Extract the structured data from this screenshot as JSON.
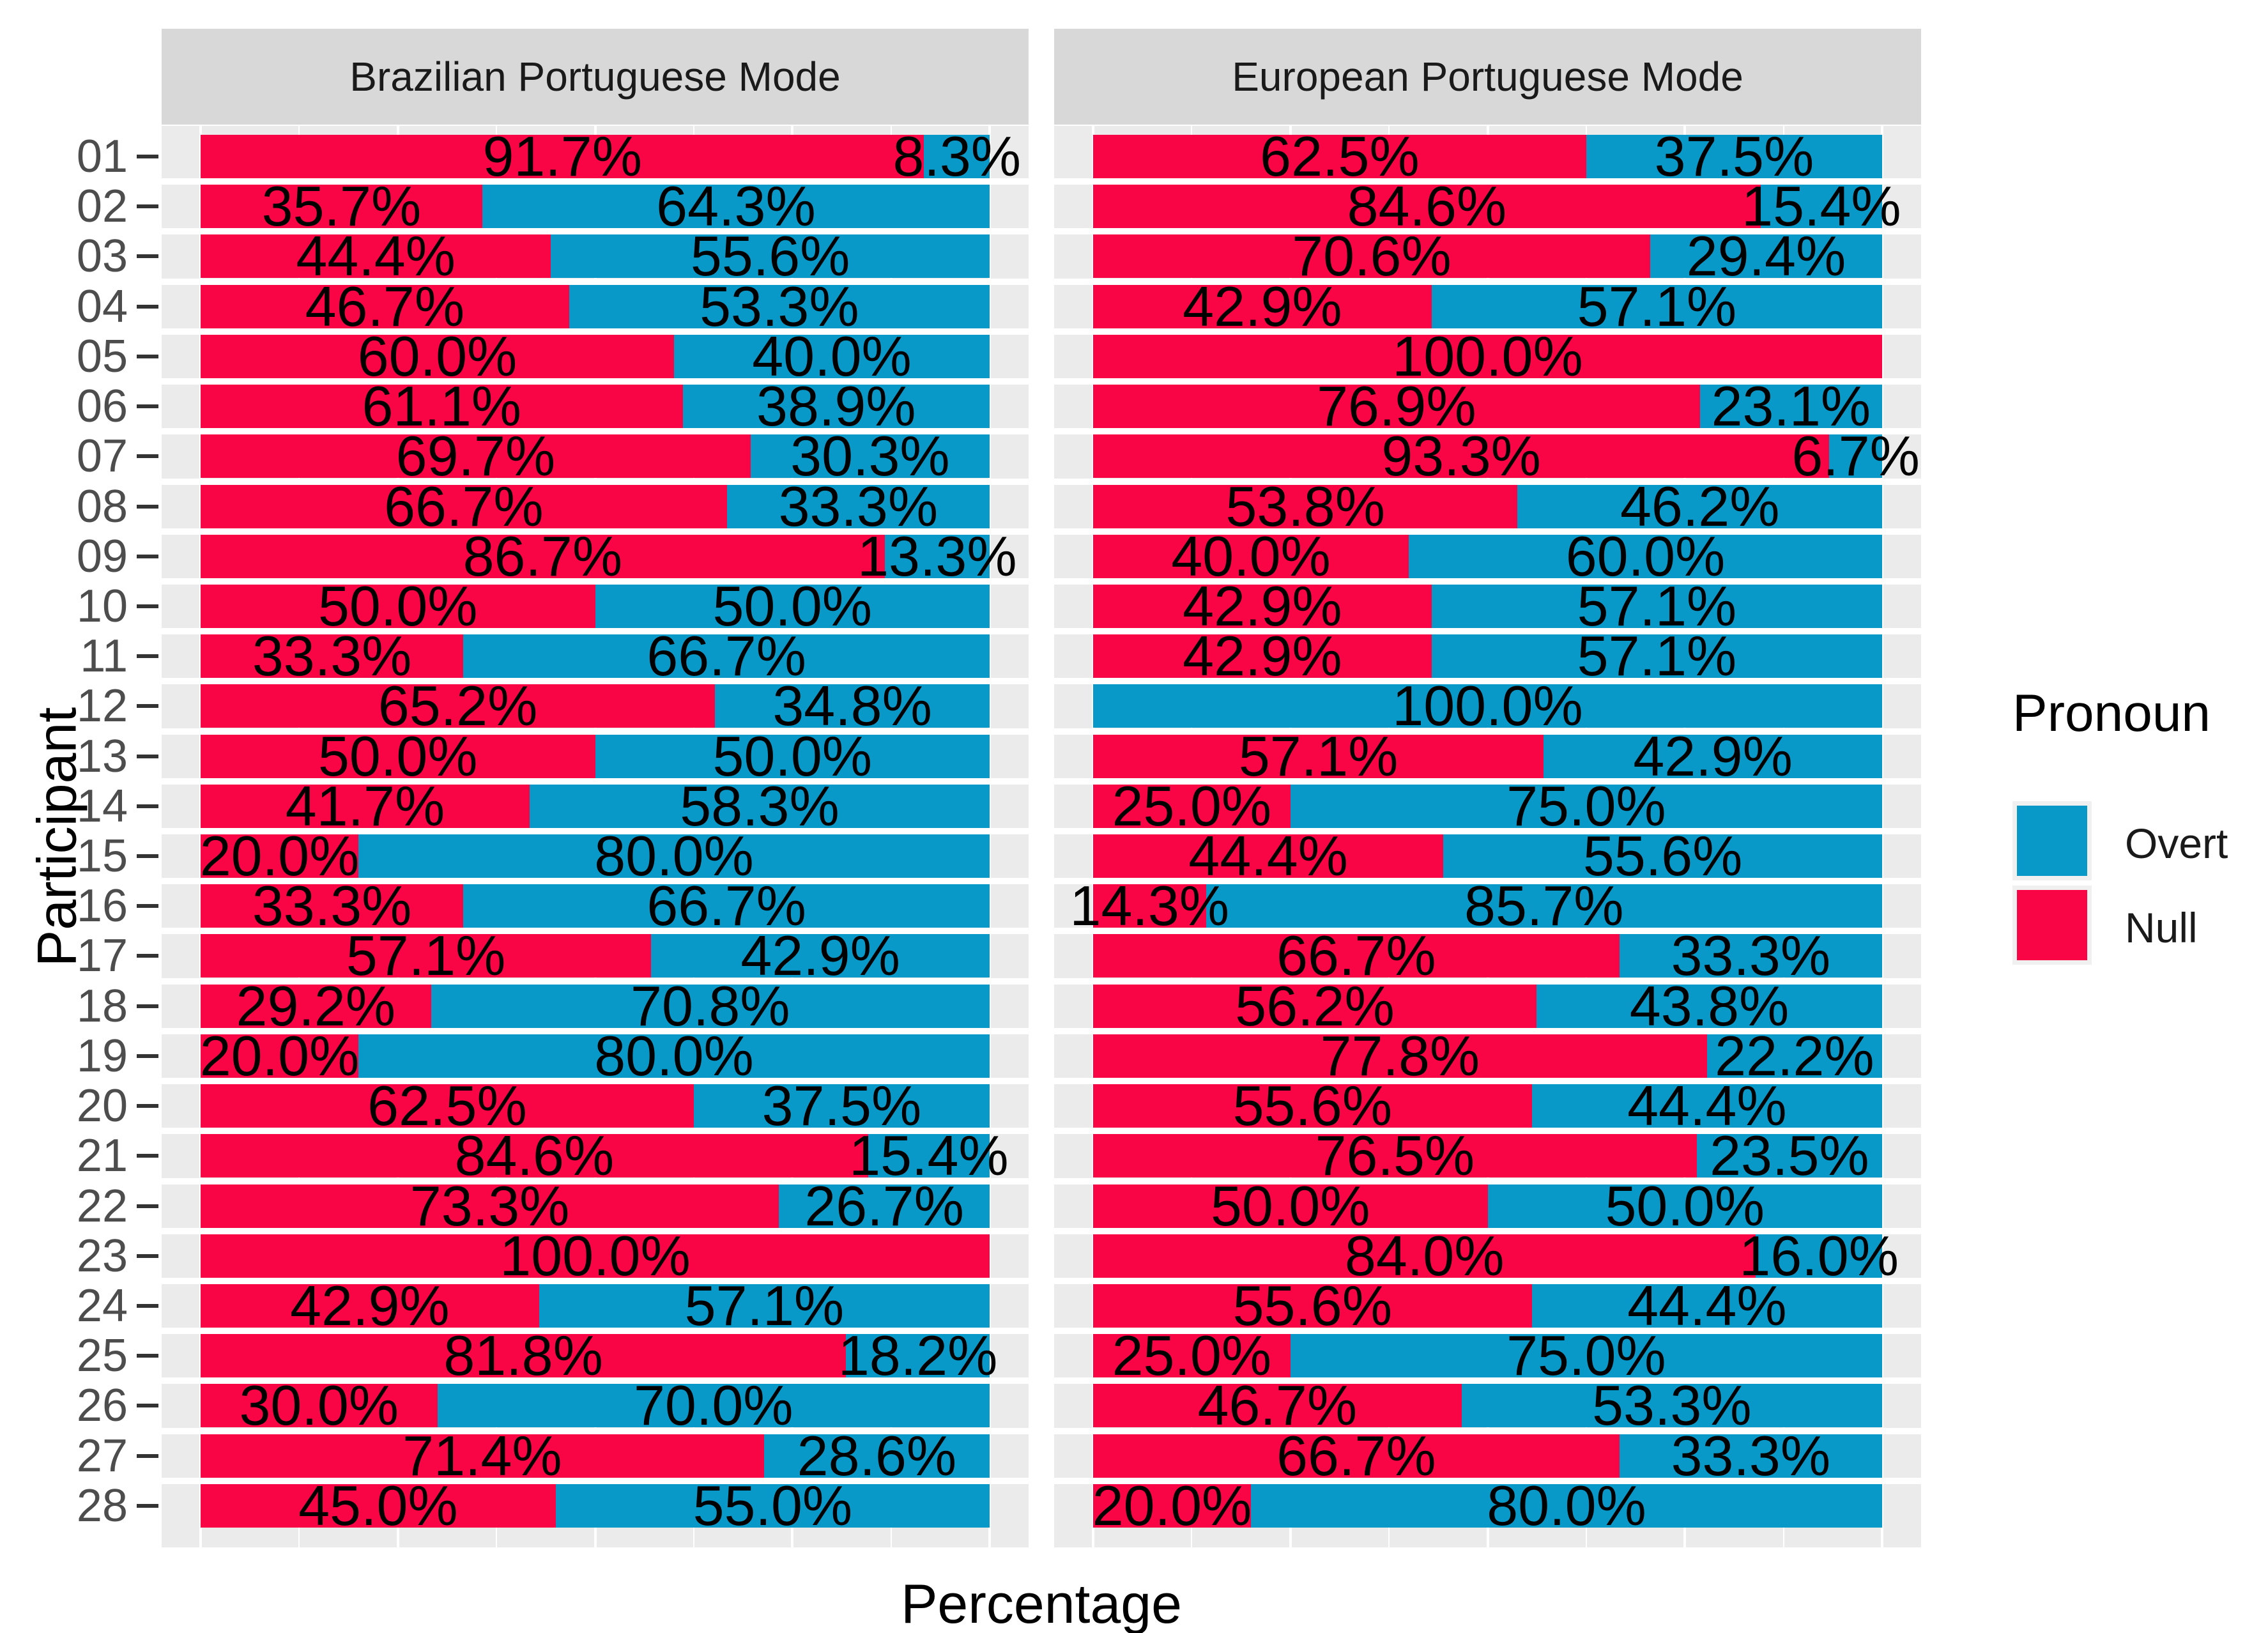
{
  "chart_data": {
    "type": "bar",
    "stacked": true,
    "orientation": "horizontal",
    "xlabel": "Percentage",
    "ylabel": "Participant",
    "xlim": [
      0,
      100
    ],
    "grid": {
      "major_x": [
        0,
        25,
        50,
        75,
        100
      ],
      "minor_x": [
        12.5,
        37.5,
        62.5,
        87.5
      ]
    },
    "value_label_format": "{value}%",
    "categories": [
      "01",
      "02",
      "03",
      "04",
      "05",
      "06",
      "07",
      "08",
      "09",
      "10",
      "11",
      "12",
      "13",
      "14",
      "15",
      "16",
      "17",
      "18",
      "19",
      "20",
      "21",
      "22",
      "23",
      "24",
      "25",
      "26",
      "27",
      "28"
    ],
    "facets": [
      {
        "label": "Brazilian Portuguese Mode",
        "series": [
          {
            "name": "Null",
            "values": [
              91.7,
              35.7,
              44.4,
              46.7,
              60.0,
              61.1,
              69.7,
              66.7,
              86.7,
              50.0,
              33.3,
              65.2,
              50.0,
              41.7,
              20.0,
              33.3,
              57.1,
              29.2,
              20.0,
              62.5,
              84.6,
              73.3,
              100.0,
              42.9,
              81.8,
              30.0,
              71.4,
              45.0
            ]
          },
          {
            "name": "Overt",
            "values": [
              8.3,
              64.3,
              55.6,
              53.3,
              40.0,
              38.9,
              30.3,
              33.3,
              13.3,
              50.0,
              66.7,
              34.8,
              50.0,
              58.3,
              80.0,
              66.7,
              42.9,
              70.8,
              80.0,
              37.5,
              15.4,
              26.7,
              0.0,
              57.1,
              18.2,
              70.0,
              28.6,
              55.0
            ]
          }
        ]
      },
      {
        "label": "European Portuguese Mode",
        "series": [
          {
            "name": "Null",
            "values": [
              62.5,
              84.6,
              70.6,
              42.9,
              100.0,
              76.9,
              93.3,
              53.8,
              40.0,
              42.9,
              42.9,
              0.0,
              57.1,
              25.0,
              44.4,
              14.3,
              66.7,
              56.2,
              77.8,
              55.6,
              76.5,
              50.0,
              84.0,
              55.6,
              25.0,
              46.7,
              66.7,
              20.0
            ]
          },
          {
            "name": "Overt",
            "values": [
              37.5,
              15.4,
              29.4,
              57.1,
              0.0,
              23.1,
              6.7,
              46.2,
              60.0,
              57.1,
              57.1,
              100.0,
              42.9,
              75.0,
              55.6,
              85.7,
              33.3,
              43.8,
              22.2,
              44.4,
              23.5,
              50.0,
              16.0,
              44.4,
              75.0,
              53.3,
              33.3,
              80.0
            ]
          }
        ]
      }
    ],
    "legend": {
      "title": "Pronoun",
      "entries": [
        {
          "label": "Overt",
          "color": "#0999c9"
        },
        {
          "label": "Null",
          "color": "#f90445"
        }
      ]
    },
    "colors": {
      "Null": "#f90445",
      "Overt": "#0999c9",
      "panel_background": "#ebebeb",
      "strip_background": "#d8d8d8",
      "gridline": "#ffffff"
    }
  }
}
